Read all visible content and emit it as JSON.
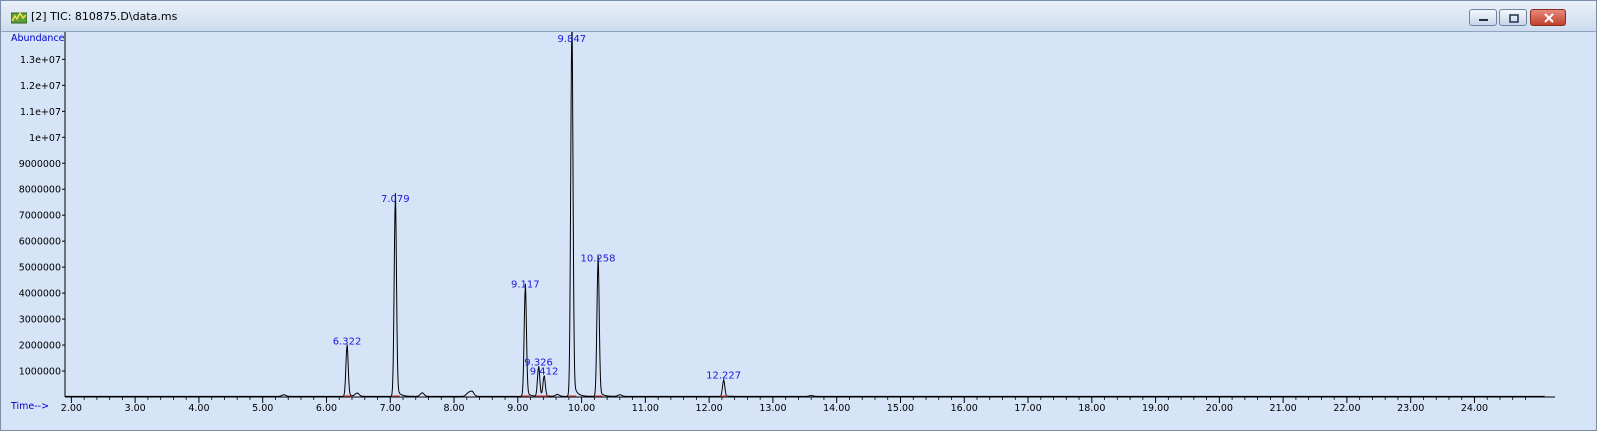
{
  "window": {
    "title": "[2] TIC: 810875.D\\data.ms",
    "buttons": [
      "minimize-button",
      "restore-button",
      "close-button"
    ]
  },
  "colors": {
    "plot_background": "#d6e4f8",
    "trace": "#000000",
    "peak_labels": "#1a1ad8",
    "axis_text": "#000000",
    "axis_title": "#0000cc",
    "baseline_marks": "#d04040"
  },
  "chart_data": {
    "type": "line",
    "ylabel": "Abundance",
    "xlabel": "Time-->",
    "xlim": [
      1.9,
      25.2
    ],
    "ylim": [
      0,
      13900000
    ],
    "x_ticks": [
      "2.00",
      "3.00",
      "4.00",
      "5.00",
      "6.00",
      "7.00",
      "8.00",
      "9.00",
      "10.00",
      "11.00",
      "12.00",
      "13.00",
      "14.00",
      "15.00",
      "16.00",
      "17.00",
      "18.00",
      "19.00",
      "20.00",
      "21.00",
      "22.00",
      "23.00",
      "24.00"
    ],
    "y_ticks": [
      {
        "value": 1000000,
        "label": "1000000"
      },
      {
        "value": 2000000,
        "label": "2000000"
      },
      {
        "value": 3000000,
        "label": "3000000"
      },
      {
        "value": 4000000,
        "label": "4000000"
      },
      {
        "value": 5000000,
        "label": "5000000"
      },
      {
        "value": 6000000,
        "label": "6000000"
      },
      {
        "value": 7000000,
        "label": "7000000"
      },
      {
        "value": 8000000,
        "label": "8000000"
      },
      {
        "value": 9000000,
        "label": "9000000"
      },
      {
        "value": 10000000,
        "label": "1e+07"
      },
      {
        "value": 11000000,
        "label": "1.1e+07"
      },
      {
        "value": 12000000,
        "label": "1.2e+07"
      },
      {
        "value": 13000000,
        "label": "1.3e+07"
      }
    ],
    "peaks": [
      {
        "rt": 6.322,
        "label": "6.322",
        "height": 1900000
      },
      {
        "rt": 7.079,
        "label": "7.079",
        "height": 7400000
      },
      {
        "rt": 9.117,
        "label": "9.117",
        "height": 4100000
      },
      {
        "rt": 9.326,
        "label": "9.326",
        "height": 1100000
      },
      {
        "rt": 9.412,
        "label": "9.412",
        "height": 750000
      },
      {
        "rt": 9.847,
        "label": "9.847",
        "height": 13800000
      },
      {
        "rt": 10.258,
        "label": "10.258",
        "height": 5100000
      },
      {
        "rt": 12.227,
        "label": "12.227",
        "height": 600000
      }
    ],
    "minor_peaks": [
      {
        "rt": 5.33,
        "height": 60000
      },
      {
        "rt": 6.48,
        "height": 120000
      },
      {
        "rt": 7.5,
        "height": 130000
      },
      {
        "rt": 8.28,
        "height": 180000
      },
      {
        "rt": 8.22,
        "height": 120000
      },
      {
        "rt": 9.62,
        "height": 70000
      },
      {
        "rt": 10.6,
        "height": 60000
      },
      {
        "rt": 13.6,
        "height": 30000
      }
    ]
  }
}
